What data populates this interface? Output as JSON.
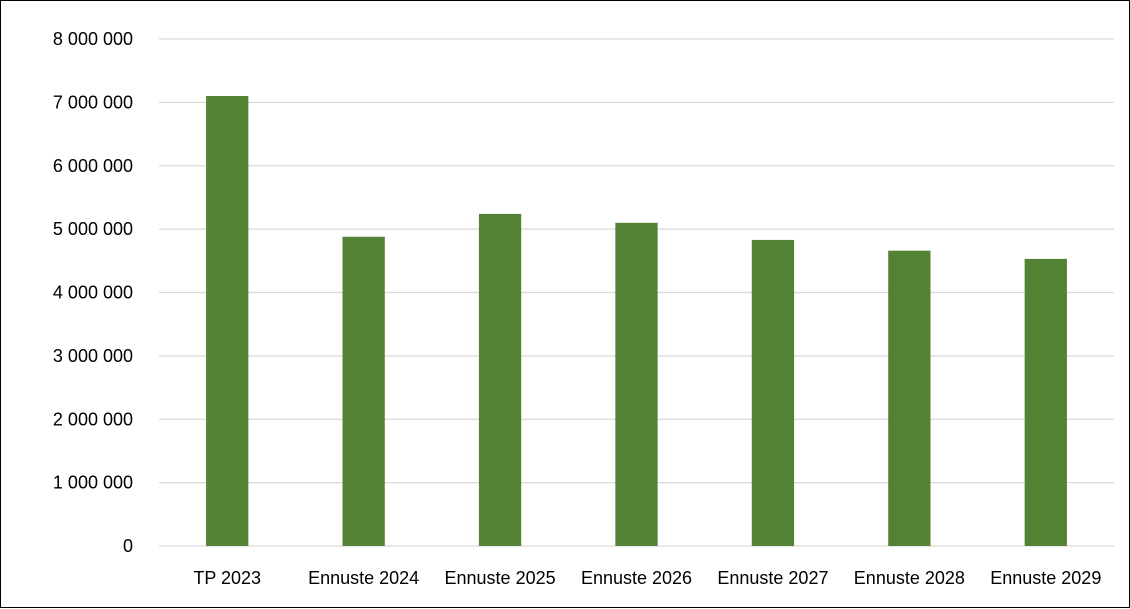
{
  "chart_data": {
    "type": "bar",
    "categories": [
      "TP 2023",
      "Ennuste 2024",
      "Ennuste 2025",
      "Ennuste 2026",
      "Ennuste 2027",
      "Ennuste 2028",
      "Ennuste 2029"
    ],
    "values": [
      7100000,
      4880000,
      5240000,
      5100000,
      4830000,
      4660000,
      4530000
    ],
    "title": "",
    "xlabel": "",
    "ylabel": "",
    "ylim": [
      0,
      8000000
    ],
    "y_ticks": [
      0,
      1000000,
      2000000,
      3000000,
      4000000,
      5000000,
      6000000,
      7000000,
      8000000
    ],
    "y_tick_labels": [
      "0",
      "1 000 000",
      "2 000 000",
      "3 000 000",
      "4 000 000",
      "5 000 000",
      "6 000 000",
      "7 000 000",
      "8 000 000"
    ],
    "grid": true,
    "legend": "none",
    "bar_color": "#548235",
    "grid_color": "#d9d9d9"
  }
}
